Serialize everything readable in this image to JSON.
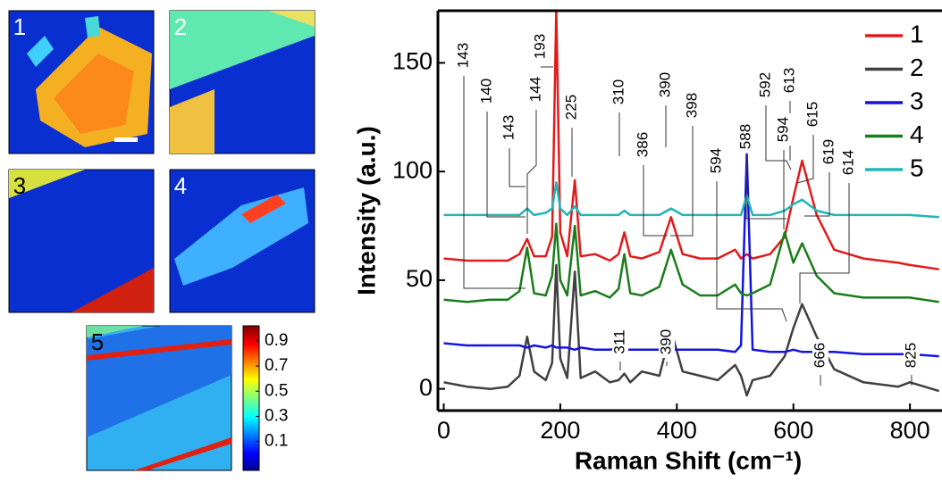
{
  "chart_data": [
    {
      "type": "line",
      "y_label": "Intensity (a.u.)",
      "x_label": "Raman Shift (cm⁻¹)",
      "x": [
        0,
        40,
        80,
        110,
        130,
        143,
        155,
        175,
        186,
        193,
        200,
        212,
        225,
        235,
        260,
        285,
        300,
        310,
        320,
        340,
        370,
        390,
        410,
        440,
        470,
        500,
        510,
        520,
        530,
        560,
        585,
        600,
        615,
        640,
        670,
        720,
        780,
        800,
        850
      ],
      "xlim": [
        -10,
        855
      ],
      "xticks": [
        0,
        200,
        400,
        600,
        800
      ],
      "ylim": [
        -10,
        174
      ],
      "yticks": [
        0,
        50,
        100,
        150
      ],
      "legend": "upper right",
      "series": [
        {
          "name": "1",
          "color": "#e31a1c",
          "values": [
            60,
            59,
            59,
            59,
            62,
            69,
            61,
            61,
            70,
            175,
            72,
            61,
            96,
            61,
            62,
            59,
            62,
            72,
            61,
            60,
            63,
            79,
            62,
            60,
            60,
            64,
            60,
            62,
            60,
            62,
            70,
            88,
            105,
            80,
            64,
            60,
            58,
            57,
            55
          ]
        },
        {
          "name": "2",
          "color": "#404040",
          "values": [
            3,
            1,
            0,
            1,
            6,
            24,
            8,
            4,
            12,
            57,
            14,
            5,
            54,
            5,
            8,
            3,
            4,
            7,
            3,
            8,
            6,
            27,
            8,
            6,
            4,
            11,
            6,
            -3,
            4,
            6,
            15,
            28,
            39,
            24,
            9,
            3,
            1,
            3,
            -1
          ]
        },
        {
          "name": "3",
          "color": "#1414e0",
          "values": [
            21,
            20,
            20,
            20,
            20,
            19,
            20,
            19,
            20,
            19,
            19,
            19,
            18,
            19,
            18,
            18,
            19,
            18,
            18,
            18,
            18,
            18,
            18,
            18,
            18,
            17,
            20,
            108,
            18,
            17,
            17,
            18,
            17,
            17,
            17,
            16,
            16,
            16,
            15
          ]
        },
        {
          "name": "4",
          "color": "#1a7d1a",
          "values": [
            41,
            40,
            41,
            41,
            45,
            65,
            44,
            43,
            52,
            76,
            50,
            43,
            75,
            43,
            45,
            42,
            46,
            62,
            44,
            43,
            47,
            64,
            48,
            43,
            43,
            48,
            44,
            43,
            44,
            48,
            72,
            58,
            67,
            52,
            44,
            42,
            42,
            42,
            40
          ]
        },
        {
          "name": "5",
          "color": "#22b5b5",
          "values": [
            80,
            80,
            80,
            80,
            80,
            83,
            80,
            81,
            83,
            95,
            83,
            80,
            84,
            80,
            80,
            80,
            80,
            82,
            80,
            80,
            80,
            83,
            80,
            80,
            80,
            80,
            80,
            89,
            80,
            80,
            82,
            85,
            87,
            82,
            80,
            80,
            80,
            80,
            79
          ]
        }
      ],
      "annotations": [
        143,
        140,
        143,
        144,
        193,
        225,
        310,
        390,
        398,
        386,
        594,
        588,
        592,
        613,
        594,
        615,
        619,
        614,
        311,
        390,
        666,
        825
      ]
    },
    {
      "type": "heatmap",
      "panels": [
        "1",
        "2",
        "3",
        "4",
        "5"
      ],
      "colorbar_lim": [
        -0.13,
        1.02
      ],
      "colorbar_ticks": [
        0.9,
        0.7,
        0.5,
        0.3,
        0.1
      ]
    }
  ]
}
